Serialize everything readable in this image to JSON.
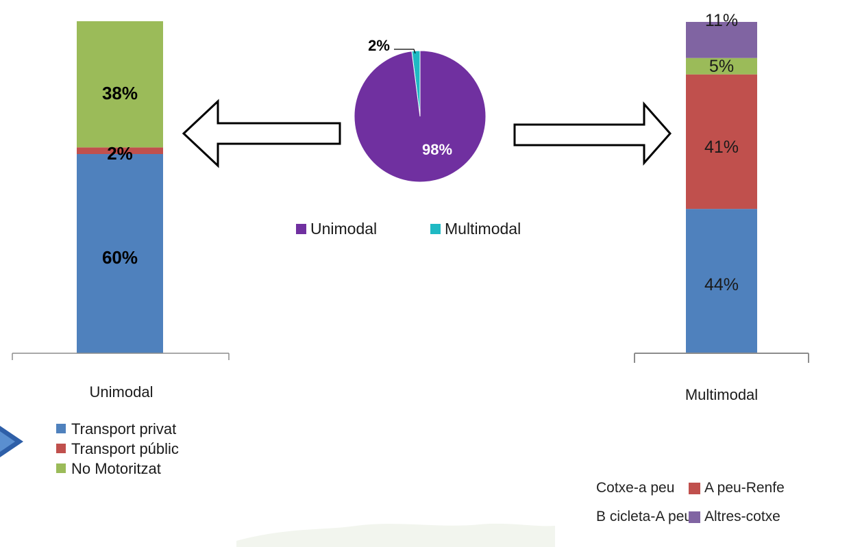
{
  "colors": {
    "blue": "#4f81bd",
    "red": "#c0504d",
    "green": "#9bbb59",
    "purple": "#7030a0",
    "teal": "#1fb9c3",
    "lavender": "#8064a2"
  },
  "chart_data": [
    {
      "type": "bar",
      "stacked": true,
      "categories": [
        "Unimodal"
      ],
      "series": [
        {
          "name": "Transport privat",
          "values": [
            60
          ],
          "label": "60%",
          "color": "#4f81bd"
        },
        {
          "name": "Transport públic",
          "values": [
            2
          ],
          "label": "2%",
          "color": "#c0504d"
        },
        {
          "name": "No Motoritzat",
          "values": [
            38
          ],
          "label": "38%",
          "color": "#9bbb59"
        }
      ],
      "legend": {
        "placement": "bottom",
        "items": [
          "Transport privat",
          "Transport públic",
          "No Motoritzat"
        ]
      }
    },
    {
      "type": "pie",
      "slices": [
        {
          "name": "Unimodal",
          "value": 98,
          "label": "98%",
          "color": "#7030a0"
        },
        {
          "name": "Multimodal",
          "value": 2,
          "label": "2%",
          "color": "#1fb9c3"
        }
      ],
      "legend": {
        "placement": "bottom",
        "items": [
          "Unimodal",
          "Multimodal"
        ]
      }
    },
    {
      "type": "bar",
      "stacked": true,
      "categories": [
        "Multimodal"
      ],
      "series": [
        {
          "name": "Cotxe-a peu",
          "values": [
            44
          ],
          "label": "44%",
          "color": "#4f81bd"
        },
        {
          "name": "A peu-Renfe",
          "values": [
            41
          ],
          "label": "41%",
          "color": "#c0504d"
        },
        {
          "name": "B cicleta-A peu",
          "values": [
            5
          ],
          "label": "5%",
          "color": "#9bbb59"
        },
        {
          "name": "Altres-cotxe",
          "values": [
            11
          ],
          "label": "11%",
          "color": "#8064a2"
        }
      ],
      "legend": {
        "placement": "bottom",
        "items": [
          "Cotxe-a peu",
          "A peu-Renfe",
          "B cicleta-A peu",
          "Altres-cotxe"
        ]
      }
    }
  ],
  "legend_left": [
    {
      "label": "Transport privat",
      "color": "#4f81bd"
    },
    {
      "label": "Transport públic",
      "color": "#c0504d"
    },
    {
      "label": "No Motoritzat",
      "color": "#9bbb59"
    }
  ],
  "legend_pie": [
    {
      "label": "Unimodal",
      "color": "#7030a0"
    },
    {
      "label": "Multimodal",
      "color": "#1fb9c3"
    }
  ],
  "legend_right": {
    "row1": {
      "left": "Cotxe-a peu",
      "right": "A peu-Renfe",
      "right_color": "#c0504d"
    },
    "row2": {
      "left": "B cicleta-A peu",
      "right": "Altres-cotxe",
      "right_color": "#8064a2"
    }
  }
}
